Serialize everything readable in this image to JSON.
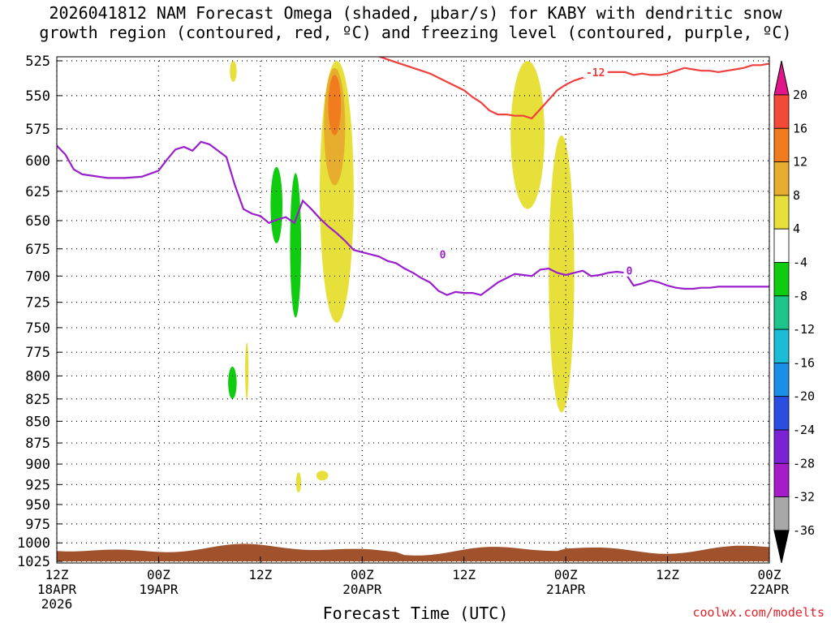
{
  "title_lines": [
    "2026041812 NAM Forecast Omega (shaded, μbar/s) for KABY with dendritic snow",
    "growth region (contoured, red, ºC) and freezing level (contoured, purple, ºC)"
  ],
  "credit": "coolwx.com/modelts",
  "chart_data": {
    "type": "heatmap",
    "title": "2026041812 NAM Forecast Omega (shaded, μbar/s) for KABY with dendritic snow growth region (contoured, red, ºC) and freezing level (contoured, purple, ºC)",
    "xlabel": "Forecast Time (UTC)",
    "ylabel": "",
    "x_range_hours": [
      0,
      84
    ],
    "y_range_mb": [
      1025,
      525
    ],
    "y_scale": "log-pressure",
    "grid": true,
    "x_ticks": [
      {
        "hour": 0,
        "lines": [
          "12Z",
          "18APR",
          "2026"
        ]
      },
      {
        "hour": 12,
        "lines": [
          "00Z",
          "19APR"
        ]
      },
      {
        "hour": 24,
        "lines": [
          "12Z"
        ]
      },
      {
        "hour": 36,
        "lines": [
          "00Z",
          "20APR"
        ]
      },
      {
        "hour": 48,
        "lines": [
          "12Z"
        ]
      },
      {
        "hour": 60,
        "lines": [
          "00Z",
          "21APR"
        ]
      },
      {
        "hour": 72,
        "lines": [
          "12Z"
        ]
      },
      {
        "hour": 84,
        "lines": [
          "00Z",
          "22APR"
        ]
      }
    ],
    "y_ticks": [
      "525",
      "550",
      "575",
      "600",
      "625",
      "650",
      "675",
      "700",
      "725",
      "750",
      "775",
      "800",
      "825",
      "850",
      "875",
      "900",
      "925",
      "950",
      "975",
      "1000",
      "1025"
    ],
    "colorbar": {
      "labels": [
        "20",
        "16",
        "12",
        "8",
        "4",
        "-4",
        "-8",
        "-12",
        "-16",
        "-20",
        "-24",
        "-28",
        "-32",
        "-36"
      ],
      "bands": [
        {
          "from": 20,
          "to": 16,
          "color": "#f24a37"
        },
        {
          "from": 16,
          "to": 12,
          "color": "#f07c1f"
        },
        {
          "from": 12,
          "to": 8,
          "color": "#e6ad2e"
        },
        {
          "from": 8,
          "to": 4,
          "color": "#e8e03a"
        },
        {
          "from": 4,
          "to": -4,
          "color": "#ffffff"
        },
        {
          "from": -4,
          "to": -8,
          "color": "#10cc10"
        },
        {
          "from": -8,
          "to": -12,
          "color": "#1ec489"
        },
        {
          "from": -12,
          "to": -16,
          "color": "#1cbcd6"
        },
        {
          "from": -16,
          "to": -20,
          "color": "#1a8fe8"
        },
        {
          "from": -20,
          "to": -24,
          "color": "#2a4ee0"
        },
        {
          "from": -24,
          "to": -28,
          "color": "#7a22d4"
        },
        {
          "from": -28,
          "to": -32,
          "color": "#a51cc9"
        },
        {
          "from": -32,
          "to": -36,
          "color": "#a8a8a8"
        }
      ],
      "top_arrow_color": "#e0158a",
      "bottom_arrow_color": "#000000"
    },
    "series": [
      {
        "name": "freezing level",
        "label": "0",
        "color": "#9a1fcc",
        "x": [
          0,
          1,
          2,
          3,
          4,
          6,
          8,
          10,
          12,
          13,
          14,
          15,
          16,
          17,
          18,
          19,
          20,
          21,
          22,
          23,
          24,
          25,
          26,
          27,
          28,
          29,
          30,
          31,
          32,
          33,
          34,
          35,
          36,
          37,
          38,
          39,
          40,
          41,
          42,
          43,
          44,
          45,
          46,
          47,
          48,
          49,
          50,
          51,
          52,
          53,
          54,
          55,
          56,
          57,
          58,
          59,
          60,
          61,
          62,
          63,
          64,
          65,
          66,
          67,
          68,
          69,
          70,
          71,
          72,
          73,
          74,
          75,
          76,
          77,
          78,
          80,
          82,
          84
        ],
        "y": [
          588,
          595,
          607,
          611,
          612,
          614,
          614,
          613,
          608,
          599,
          591,
          589,
          592,
          585,
          587,
          592,
          597,
          620,
          640,
          644,
          646,
          652,
          649,
          647,
          652,
          633,
          640,
          648,
          655,
          661,
          668,
          676,
          678,
          680,
          682,
          686,
          688,
          693,
          697,
          702,
          706,
          714,
          718,
          715,
          716,
          716,
          718,
          712,
          706,
          702,
          698,
          699,
          700,
          694,
          693,
          697,
          699,
          697,
          695,
          700,
          699,
          697,
          696,
          697,
          709,
          707,
          704,
          706,
          709,
          711,
          712,
          712,
          711,
          711,
          710,
          710,
          710,
          710
        ]
      },
      {
        "name": "dendritic snow growth region",
        "label": "-12",
        "color": "#ef3f3f",
        "x": [
          38,
          40,
          42,
          44,
          46,
          48,
          49,
          50,
          51,
          52,
          53,
          54,
          55,
          56,
          57,
          58,
          59,
          60,
          61,
          62,
          63,
          64,
          65,
          66,
          67,
          68,
          69,
          70,
          71,
          72,
          73,
          74,
          75,
          76,
          77,
          78,
          79,
          80,
          81,
          82,
          83,
          84
        ],
        "y": [
          522,
          526,
          530,
          534,
          540,
          546,
          551,
          555,
          561,
          564,
          564,
          565,
          565,
          567,
          560,
          553,
          546,
          542,
          539,
          537,
          536,
          534,
          533,
          533,
          533,
          535,
          534,
          535,
          535,
          534,
          532,
          530,
          531,
          532,
          532,
          533,
          532,
          531,
          530,
          528,
          528,
          527
        ]
      }
    ],
    "omega_regions": [
      {
        "value": "4 to 8",
        "hours": [
          31.0,
          35.0
        ],
        "mb": [
          525,
          745
        ],
        "color": "#e8e03a"
      },
      {
        "value": "8 to 12",
        "hours": [
          31.5,
          34.0
        ],
        "mb": [
          530,
          620
        ],
        "color": "#e6ad2e"
      },
      {
        "value": "12 to 16",
        "hours": [
          32.0,
          33.5
        ],
        "mb": [
          535,
          580
        ],
        "color": "#f07c1f"
      },
      {
        "value": "4 to 8",
        "hours": [
          20.4,
          21.2
        ],
        "mb": [
          525,
          540
        ],
        "color": "#e8e03a"
      },
      {
        "value": "4 to 8",
        "hours": [
          53.5,
          57.5
        ],
        "mb": [
          525,
          640
        ],
        "color": "#e8e03a"
      },
      {
        "value": "4 to 8",
        "hours": [
          58.0,
          61.0
        ],
        "mb": [
          580,
          840
        ],
        "color": "#e8e03a"
      },
      {
        "value": "4 to 8",
        "hours": [
          22.2,
          22.6
        ],
        "mb": [
          765,
          825
        ],
        "color": "#e8e03a"
      },
      {
        "value": "4 to 8",
        "hours": [
          28.2,
          28.8
        ],
        "mb": [
          910,
          935
        ],
        "color": "#e8e03a"
      },
      {
        "value": "4 to 8",
        "hours": [
          30.6,
          32.0
        ],
        "mb": [
          908,
          920
        ],
        "color": "#e8e03a"
      },
      {
        "value": "-4 to -8",
        "hours": [
          25.2,
          26.6
        ],
        "mb": [
          605,
          670
        ],
        "color": "#10cc10"
      },
      {
        "value": "-4 to -8",
        "hours": [
          27.5,
          28.8
        ],
        "mb": [
          610,
          740
        ],
        "color": "#10cc10"
      },
      {
        "value": "-4 to -8",
        "hours": [
          20.2,
          21.2
        ],
        "mb": [
          790,
          825
        ],
        "color": "#10cc10"
      }
    ],
    "terrain_color": "#a0522d"
  }
}
